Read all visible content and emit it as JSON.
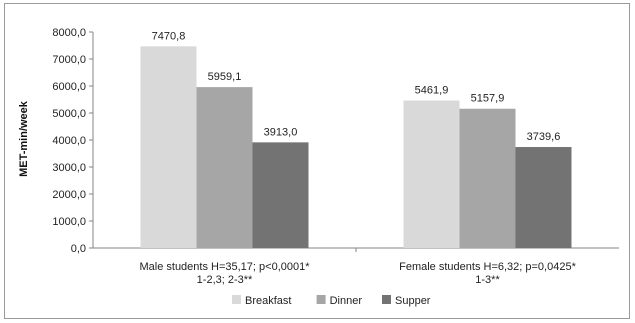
{
  "chart_data": {
    "type": "bar",
    "ylabel": "MET-min/week",
    "ylim": [
      0,
      8000
    ],
    "ytick_labels": [
      "0,0",
      "1000,0",
      "2000,0",
      "3000,0",
      "4000,0",
      "5000,0",
      "6000,0",
      "7000,0",
      "8000,0"
    ],
    "categories": [
      [
        "Male students H=35,17; p<0,0001*",
        "1-2,3; 2-3**"
      ],
      [
        "Female students H=6,32; p=0,0425*",
        "1-3**"
      ]
    ],
    "series": [
      {
        "name": "Breakfast",
        "color": "#d9d9d9",
        "values": [
          7470.8,
          5461.9
        ],
        "labels": [
          "7470,8",
          "5461,9"
        ]
      },
      {
        "name": "Dinner",
        "color": "#a6a6a6",
        "values": [
          5959.1,
          5157.9
        ],
        "labels": [
          "5959,1",
          "5157,9"
        ]
      },
      {
        "name": "Supper",
        "color": "#737373",
        "values": [
          3913.0,
          3739.6
        ],
        "labels": [
          "3913,0",
          "3739,6"
        ]
      }
    ],
    "grid": false,
    "legend_position": "bottom"
  }
}
